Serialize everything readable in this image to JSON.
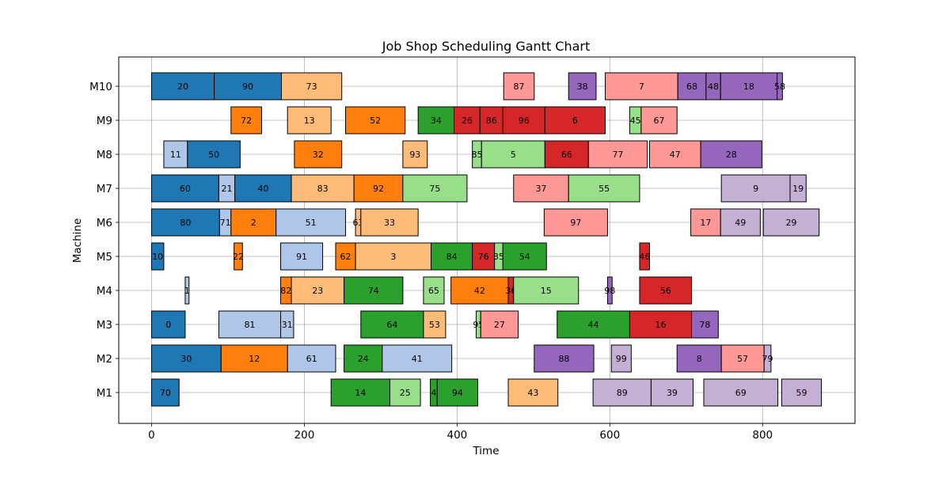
{
  "chart_data": {
    "type": "gantt",
    "title": "Job Shop Scheduling Gantt Chart",
    "xlabel": "Time",
    "ylabel": "Machine",
    "xlim": [
      -43,
      921
    ],
    "x_ticks": [
      0,
      200,
      400,
      600,
      800
    ],
    "machines": [
      "M1",
      "M2",
      "M3",
      "M4",
      "M5",
      "M6",
      "M7",
      "M8",
      "M9",
      "M10"
    ],
    "grid": true,
    "colors": [
      "#1f77b4",
      "#aec7e8",
      "#ff7f0e",
      "#ffbb78",
      "#2ca02c",
      "#98df8a",
      "#d62728",
      "#ff9896",
      "#9467bd",
      "#c5b0d5"
    ],
    "tasks": [
      {
        "machine": "M1",
        "job": 70,
        "start": 0,
        "end": 36
      },
      {
        "machine": "M1",
        "job": 14,
        "start": 235,
        "end": 312
      },
      {
        "machine": "M1",
        "job": 25,
        "start": 312,
        "end": 352
      },
      {
        "machine": "M1",
        "job": 4,
        "start": 365,
        "end": 374
      },
      {
        "machine": "M1",
        "job": 94,
        "start": 374,
        "end": 427
      },
      {
        "machine": "M1",
        "job": 43,
        "start": 467,
        "end": 532
      },
      {
        "machine": "M1",
        "job": 89,
        "start": 578,
        "end": 654
      },
      {
        "machine": "M1",
        "job": 39,
        "start": 654,
        "end": 709
      },
      {
        "machine": "M1",
        "job": 69,
        "start": 723,
        "end": 820
      },
      {
        "machine": "M1",
        "job": 59,
        "start": 825,
        "end": 877
      },
      {
        "machine": "M2",
        "job": 30,
        "start": 0,
        "end": 91
      },
      {
        "machine": "M2",
        "job": 12,
        "start": 91,
        "end": 178
      },
      {
        "machine": "M2",
        "job": 61,
        "start": 178,
        "end": 241
      },
      {
        "machine": "M2",
        "job": 24,
        "start": 252,
        "end": 302
      },
      {
        "machine": "M2",
        "job": 41,
        "start": 302,
        "end": 393
      },
      {
        "machine": "M2",
        "job": 88,
        "start": 501,
        "end": 579
      },
      {
        "machine": "M2",
        "job": 99,
        "start": 602,
        "end": 628
      },
      {
        "machine": "M2",
        "job": 8,
        "start": 688,
        "end": 746
      },
      {
        "machine": "M2",
        "job": 57,
        "start": 746,
        "end": 802
      },
      {
        "machine": "M2",
        "job": 79,
        "start": 802,
        "end": 811
      },
      {
        "machine": "M3",
        "job": 0,
        "start": 0,
        "end": 44
      },
      {
        "machine": "M3",
        "job": 81,
        "start": 88,
        "end": 169
      },
      {
        "machine": "M3",
        "job": 31,
        "start": 169,
        "end": 186
      },
      {
        "machine": "M3",
        "job": 64,
        "start": 274,
        "end": 356
      },
      {
        "machine": "M3",
        "job": 53,
        "start": 356,
        "end": 385
      },
      {
        "machine": "M3",
        "job": 95,
        "start": 425,
        "end": 431
      },
      {
        "machine": "M3",
        "job": 27,
        "start": 431,
        "end": 480
      },
      {
        "machine": "M3",
        "job": 44,
        "start": 531,
        "end": 626
      },
      {
        "machine": "M3",
        "job": 16,
        "start": 626,
        "end": 707
      },
      {
        "machine": "M3",
        "job": 78,
        "start": 707,
        "end": 742
      },
      {
        "machine": "M4",
        "job": 1,
        "start": 44,
        "end": 49
      },
      {
        "machine": "M4",
        "job": 82,
        "start": 169,
        "end": 183
      },
      {
        "machine": "M4",
        "job": 23,
        "start": 183,
        "end": 252
      },
      {
        "machine": "M4",
        "job": 74,
        "start": 252,
        "end": 329
      },
      {
        "machine": "M4",
        "job": 65,
        "start": 356,
        "end": 383
      },
      {
        "machine": "M4",
        "job": 42,
        "start": 392,
        "end": 467
      },
      {
        "machine": "M4",
        "job": 36,
        "start": 467,
        "end": 474
      },
      {
        "machine": "M4",
        "job": 15,
        "start": 474,
        "end": 559
      },
      {
        "machine": "M4",
        "job": 98,
        "start": 597,
        "end": 603
      },
      {
        "machine": "M4",
        "job": 56,
        "start": 639,
        "end": 707
      },
      {
        "machine": "M5",
        "job": 10,
        "start": 0,
        "end": 16
      },
      {
        "machine": "M5",
        "job": 22,
        "start": 108,
        "end": 119
      },
      {
        "machine": "M5",
        "job": 91,
        "start": 169,
        "end": 224
      },
      {
        "machine": "M5",
        "job": 62,
        "start": 241,
        "end": 267
      },
      {
        "machine": "M5",
        "job": 3,
        "start": 267,
        "end": 366
      },
      {
        "machine": "M5",
        "job": 84,
        "start": 366,
        "end": 420
      },
      {
        "machine": "M5",
        "job": 76,
        "start": 420,
        "end": 449
      },
      {
        "machine": "M5",
        "job": 35,
        "start": 449,
        "end": 460
      },
      {
        "machine": "M5",
        "job": 54,
        "start": 460,
        "end": 517
      },
      {
        "machine": "M5",
        "job": 46,
        "start": 639,
        "end": 652
      },
      {
        "machine": "M6",
        "job": 80,
        "start": 0,
        "end": 89
      },
      {
        "machine": "M6",
        "job": 71,
        "start": 89,
        "end": 104
      },
      {
        "machine": "M6",
        "job": 2,
        "start": 104,
        "end": 163
      },
      {
        "machine": "M6",
        "job": 51,
        "start": 163,
        "end": 254
      },
      {
        "machine": "M6",
        "job": 63,
        "start": 267,
        "end": 274
      },
      {
        "machine": "M6",
        "job": 33,
        "start": 274,
        "end": 349
      },
      {
        "machine": "M6",
        "job": 97,
        "start": 514,
        "end": 597
      },
      {
        "machine": "M6",
        "job": 17,
        "start": 706,
        "end": 745
      },
      {
        "machine": "M6",
        "job": 49,
        "start": 745,
        "end": 797
      },
      {
        "machine": "M6",
        "job": 29,
        "start": 801,
        "end": 874
      },
      {
        "machine": "M7",
        "job": 60,
        "start": 0,
        "end": 88
      },
      {
        "machine": "M7",
        "job": 21,
        "start": 88,
        "end": 109
      },
      {
        "machine": "M7",
        "job": 40,
        "start": 109,
        "end": 183
      },
      {
        "machine": "M7",
        "job": 83,
        "start": 183,
        "end": 265
      },
      {
        "machine": "M7",
        "job": 92,
        "start": 265,
        "end": 329
      },
      {
        "machine": "M7",
        "job": 75,
        "start": 329,
        "end": 413
      },
      {
        "machine": "M7",
        "job": 37,
        "start": 474,
        "end": 546
      },
      {
        "machine": "M7",
        "job": 55,
        "start": 546,
        "end": 639
      },
      {
        "machine": "M7",
        "job": 9,
        "start": 746,
        "end": 836
      },
      {
        "machine": "M7",
        "job": 19,
        "start": 836,
        "end": 857
      },
      {
        "machine": "M8",
        "job": 11,
        "start": 16,
        "end": 47
      },
      {
        "machine": "M8",
        "job": 50,
        "start": 47,
        "end": 116
      },
      {
        "machine": "M8",
        "job": 32,
        "start": 187,
        "end": 249
      },
      {
        "machine": "M8",
        "job": 93,
        "start": 329,
        "end": 361
      },
      {
        "machine": "M8",
        "job": 85,
        "start": 420,
        "end": 432
      },
      {
        "machine": "M8",
        "job": 5,
        "start": 432,
        "end": 515
      },
      {
        "machine": "M8",
        "job": 66,
        "start": 515,
        "end": 572
      },
      {
        "machine": "M8",
        "job": 77,
        "start": 572,
        "end": 649
      },
      {
        "machine": "M8",
        "job": 47,
        "start": 652,
        "end": 719
      },
      {
        "machine": "M8",
        "job": 28,
        "start": 719,
        "end": 799
      },
      {
        "machine": "M9",
        "job": 72,
        "start": 104,
        "end": 144
      },
      {
        "machine": "M9",
        "job": 13,
        "start": 178,
        "end": 235
      },
      {
        "machine": "M9",
        "job": 52,
        "start": 254,
        "end": 332
      },
      {
        "machine": "M9",
        "job": 34,
        "start": 349,
        "end": 396
      },
      {
        "machine": "M9",
        "job": 26,
        "start": 396,
        "end": 430
      },
      {
        "machine": "M9",
        "job": 86,
        "start": 430,
        "end": 460
      },
      {
        "machine": "M9",
        "job": 96,
        "start": 460,
        "end": 515
      },
      {
        "machine": "M9",
        "job": 6,
        "start": 515,
        "end": 594
      },
      {
        "machine": "M9",
        "job": 45,
        "start": 626,
        "end": 641
      },
      {
        "machine": "M9",
        "job": 67,
        "start": 641,
        "end": 688
      },
      {
        "machine": "M10",
        "job": 20,
        "start": 0,
        "end": 82
      },
      {
        "machine": "M10",
        "job": 90,
        "start": 82,
        "end": 170
      },
      {
        "machine": "M10",
        "job": 73,
        "start": 170,
        "end": 249
      },
      {
        "machine": "M10",
        "job": 87,
        "start": 461,
        "end": 501
      },
      {
        "machine": "M10",
        "job": 38,
        "start": 546,
        "end": 582
      },
      {
        "machine": "M10",
        "job": 7,
        "start": 594,
        "end": 689
      },
      {
        "machine": "M10",
        "job": 68,
        "start": 689,
        "end": 726
      },
      {
        "machine": "M10",
        "job": 48,
        "start": 726,
        "end": 745
      },
      {
        "machine": "M10",
        "job": 18,
        "start": 745,
        "end": 819
      },
      {
        "machine": "M10",
        "job": 58,
        "start": 819,
        "end": 826
      }
    ]
  }
}
